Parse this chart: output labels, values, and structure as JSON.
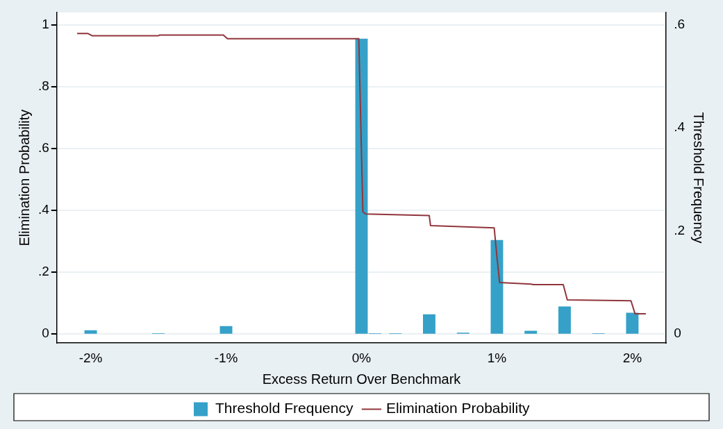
{
  "chart_data": {
    "type": "bar",
    "xlabel": "Excess Return Over Benchmark",
    "ylabel": "Elimination Probability",
    "y2label": "Threshold Frequency",
    "xlim": [
      -2.25,
      2.25
    ],
    "xticks": [
      {
        "value": -2,
        "label": "-2%"
      },
      {
        "value": -1,
        "label": "-1%"
      },
      {
        "value": 0,
        "label": "0%"
      },
      {
        "value": 1,
        "label": "1%"
      },
      {
        "value": 2,
        "label": "2%"
      }
    ],
    "ylim": [
      -0.03,
      1.04
    ],
    "yticks": [
      {
        "value": 0,
        "label": "0"
      },
      {
        "value": 0.2,
        "label": ".2"
      },
      {
        "value": 0.4,
        "label": ".4"
      },
      {
        "value": 0.6,
        "label": ".6"
      },
      {
        "value": 0.8,
        "label": ".8"
      },
      {
        "value": 1,
        "label": "1"
      }
    ],
    "y2lim": [
      -0.018,
      0.624
    ],
    "y2ticks": [
      {
        "value": 0,
        "label": "0"
      },
      {
        "value": 0.2,
        "label": ".2"
      },
      {
        "value": 0.4,
        "label": ".4"
      },
      {
        "value": 0.6,
        "label": ".6"
      }
    ],
    "grid": "y",
    "legend": "bottom",
    "series": [
      {
        "name": "Threshold Frequency",
        "axis": "y2",
        "color": "#35a1c8",
        "x": [
          -2,
          -1.5,
          -1,
          0,
          0.1,
          0.25,
          0.5,
          0.75,
          1,
          1.25,
          1.5,
          1.75,
          2
        ],
        "values": [
          0.007,
          0.001,
          0.015,
          0.573,
          0.001,
          0.001,
          0.038,
          0.002,
          0.182,
          0.006,
          0.053,
          0.001,
          0.041
        ]
      },
      {
        "name": "Elimination Probability",
        "type": "line",
        "axis": "y",
        "color": "#90353b",
        "marker": "none",
        "line_style": "solid",
        "x": [
          -2.1,
          -2.02,
          -1.99,
          -1.5,
          -1.49,
          -1.02,
          -0.99,
          -0.02,
          0.01,
          0.03,
          0.5,
          0.51,
          0.98,
          1.0,
          1.02,
          1.25,
          1.27,
          1.49,
          1.52,
          1.99,
          2.02,
          2.1
        ],
        "values": [
          0.972,
          0.972,
          0.965,
          0.965,
          0.967,
          0.967,
          0.955,
          0.955,
          0.395,
          0.388,
          0.383,
          0.35,
          0.343,
          0.25,
          0.166,
          0.161,
          0.159,
          0.159,
          0.11,
          0.107,
          0.065,
          0.065
        ]
      }
    ]
  }
}
